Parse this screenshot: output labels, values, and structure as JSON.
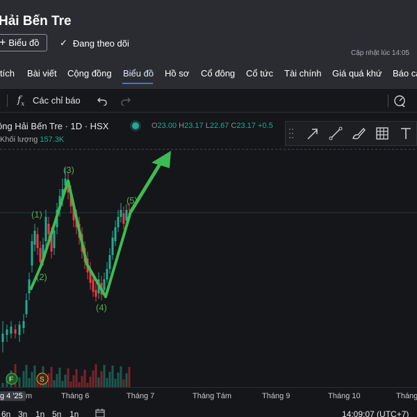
{
  "header": {
    "title": "Hải Bến Tre",
    "chart_button": "Biểu đồ",
    "follow_label": "Đang theo dõi",
    "updated": "Cập nhật lúc  14:05"
  },
  "tabs": [
    {
      "label": "tích"
    },
    {
      "label": "Bài viết"
    },
    {
      "label": "Cộng đồng"
    },
    {
      "label": "Biểu đồ",
      "active": true
    },
    {
      "label": "Hồ sơ"
    },
    {
      "label": "Cổ đông"
    },
    {
      "label": "Cổ tức"
    },
    {
      "label": "Tài chính"
    },
    {
      "label": "Giá quá khứ"
    },
    {
      "label": "Báo cá"
    }
  ],
  "toolbar": {
    "indicators_label": "Các chỉ báo",
    "icons": [
      "fx-icon",
      "undo-icon",
      "redo-icon",
      "gauge-icon"
    ]
  },
  "chart": {
    "symbol_line": "ông Hải Bến Tre · 1D · HSX",
    "ohlc": {
      "O": "23.00",
      "H": "23.17",
      "L": "22.67",
      "C": "23.17",
      "change": "+0.5"
    },
    "volume_label": "Khối lượng",
    "volume_value": "157.3K",
    "drawing_tools": [
      "drag-handle-icon",
      "arrow-tool-icon",
      "trend-line-icon",
      "brush-icon",
      "grid-tool-icon",
      "text-tool-icon"
    ],
    "wave_labels": [
      "(1)",
      "(2)",
      "(3)",
      "(4)",
      "(5)"
    ],
    "event_markers": [
      "F",
      "S"
    ],
    "colors": {
      "up": "#22ab94",
      "down": "#f23645",
      "wave": "#3dbb53",
      "background": "#151619"
    }
  },
  "time_axis": {
    "labels": [
      "g 4 '25",
      "m",
      "Tháng 6",
      "Tháng 7",
      "Tháng Tám",
      "Tháng 9",
      "Tháng 10",
      "Tháng"
    ],
    "clock": "14:09:07 (UTC+7)"
  },
  "bottom_bar": {
    "ranges": [
      "6n",
      "3n",
      "1n",
      "5n",
      "1n"
    ]
  }
}
